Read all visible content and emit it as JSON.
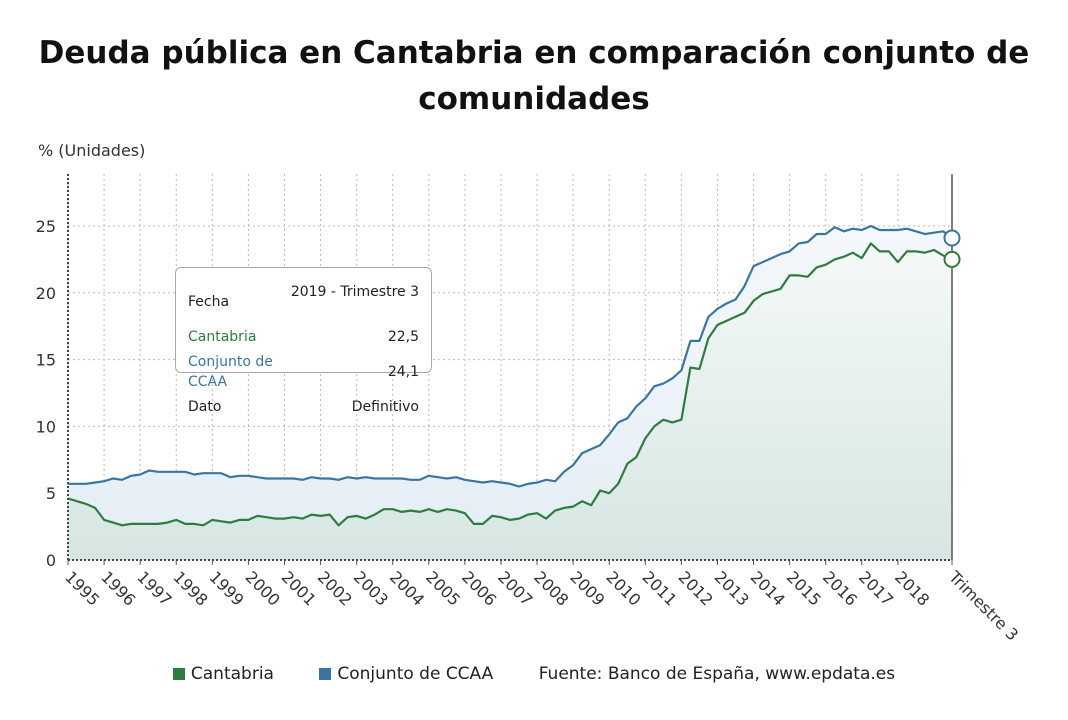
{
  "title": "Deuda pública en Cantabria en comparación conjunto de comunidades",
  "tooltip": {
    "fecha_label": "Fecha",
    "fecha_value": "2019 - Trimestre 3",
    "cantabria_label": "Cantabria",
    "cantabria_value": "22,5",
    "ccaa_label": "Conjunto de CCAA",
    "ccaa_value": "24,1",
    "dato_label": "Dato",
    "dato_value": "Definitivo"
  },
  "legend": {
    "items": [
      {
        "label": "Cantabria",
        "color": "#2e7d3e"
      },
      {
        "label": "Conjunto de CCAA",
        "color": "#3a76a0"
      }
    ],
    "source": "Fuente: Banco de España, www.epdata.es"
  },
  "chart_data": {
    "type": "area",
    "title": "Deuda pública en Cantabria en comparación conjunto de comunidades",
    "ylabel": "% (Unidades)",
    "ylim": [
      0,
      28
    ],
    "yticks": [
      0,
      5,
      10,
      15,
      20,
      25
    ],
    "xtick_labels": [
      "1995",
      "1996",
      "1997",
      "1998",
      "1999",
      "2000",
      "2001",
      "2002",
      "2003",
      "2004",
      "2005",
      "2006",
      "2007",
      "2008",
      "2009",
      "2010",
      "2011",
      "2012",
      "2013",
      "2014",
      "2015",
      "2016",
      "2017",
      "2018",
      "Trimestre 3"
    ],
    "x_start": "1995 - Trimestre 1",
    "x_end": "2019 - Trimestre 3",
    "x_frequency": "quarterly",
    "grid": true,
    "legend_position": "bottom",
    "series": [
      {
        "name": "Cantabria",
        "color": "#2e7d3e",
        "values": [
          4.6,
          4.4,
          4.2,
          3.9,
          3.0,
          2.8,
          2.6,
          2.7,
          2.7,
          2.7,
          2.7,
          2.8,
          3.0,
          2.7,
          2.7,
          2.6,
          3.0,
          2.9,
          2.8,
          3.0,
          3.0,
          3.3,
          3.2,
          3.1,
          3.1,
          3.2,
          3.1,
          3.4,
          3.3,
          3.4,
          2.6,
          3.2,
          3.3,
          3.1,
          3.4,
          3.8,
          3.8,
          3.6,
          3.7,
          3.6,
          3.8,
          3.6,
          3.8,
          3.7,
          3.5,
          2.7,
          2.7,
          3.3,
          3.2,
          3.0,
          3.1,
          3.4,
          3.5,
          3.1,
          3.7,
          3.9,
          4.0,
          4.4,
          4.1,
          5.2,
          5.0,
          5.7,
          7.2,
          7.7,
          9.1,
          10.0,
          10.5,
          10.3,
          10.5,
          14.4,
          14.3,
          16.6,
          17.6,
          17.9,
          18.2,
          18.5,
          19.4,
          19.9,
          20.1,
          20.3,
          21.3,
          21.3,
          21.2,
          21.9,
          22.1,
          22.5,
          22.7,
          23.0,
          22.6,
          23.7,
          23.1,
          23.1,
          22.3,
          23.1,
          23.1,
          23.0,
          23.2,
          22.8,
          22.5
        ]
      },
      {
        "name": "Conjunto de CCAA",
        "color": "#3a76a0",
        "values": [
          5.7,
          5.7,
          5.7,
          5.8,
          5.9,
          6.1,
          6.0,
          6.3,
          6.4,
          6.7,
          6.6,
          6.6,
          6.6,
          6.6,
          6.4,
          6.5,
          6.5,
          6.5,
          6.2,
          6.3,
          6.3,
          6.2,
          6.1,
          6.1,
          6.1,
          6.1,
          6.0,
          6.2,
          6.1,
          6.1,
          6.0,
          6.2,
          6.1,
          6.2,
          6.1,
          6.1,
          6.1,
          6.1,
          6.0,
          6.0,
          6.3,
          6.2,
          6.1,
          6.2,
          6.0,
          5.9,
          5.8,
          5.9,
          5.8,
          5.7,
          5.5,
          5.7,
          5.8,
          6.0,
          5.9,
          6.6,
          7.1,
          8.0,
          8.3,
          8.6,
          9.4,
          10.3,
          10.6,
          11.5,
          12.1,
          13.0,
          13.2,
          13.6,
          14.2,
          16.4,
          16.4,
          18.2,
          18.8,
          19.2,
          19.5,
          20.5,
          22.0,
          22.3,
          22.6,
          22.9,
          23.1,
          23.7,
          23.8,
          24.4,
          24.4,
          24.9,
          24.6,
          24.8,
          24.7,
          25.0,
          24.7,
          24.7,
          24.7,
          24.8,
          24.6,
          24.4,
          24.5,
          24.6,
          24.1
        ]
      }
    ]
  }
}
